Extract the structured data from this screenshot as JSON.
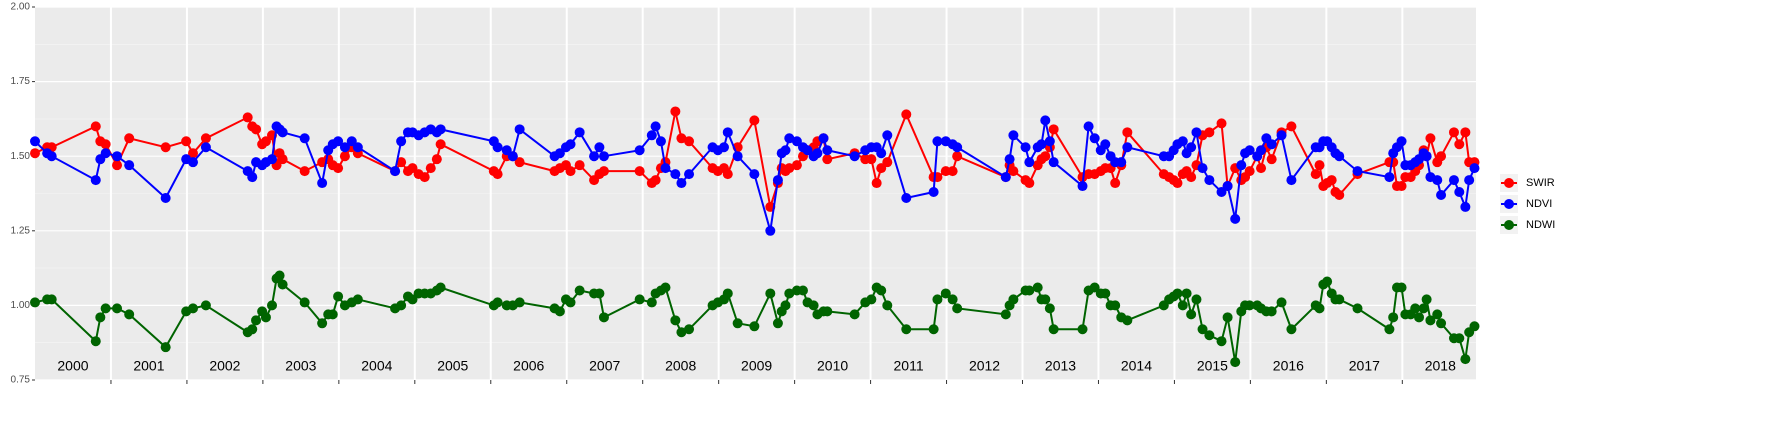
{
  "chart_data": {
    "type": "line",
    "x": [
      2000.0,
      2000.16,
      2000.22,
      2000.8,
      2000.86,
      2000.93,
      2001.08,
      2001.24,
      2001.72,
      2001.99,
      2002.08,
      2002.25,
      2002.8,
      2002.86,
      2002.91,
      2002.99,
      2003.04,
      2003.12,
      2003.18,
      2003.22,
      2003.26,
      2003.55,
      2003.78,
      2003.86,
      2003.92,
      2003.99,
      2004.08,
      2004.17,
      2004.25,
      2004.74,
      2004.82,
      2004.91,
      2004.97,
      2005.05,
      2005.13,
      2005.21,
      2005.29,
      2005.34,
      2006.04,
      2006.09,
      2006.21,
      2006.29,
      2006.38,
      2006.84,
      2006.91,
      2006.99,
      2007.05,
      2007.17,
      2007.36,
      2007.43,
      2007.49,
      2007.96,
      2008.12,
      2008.17,
      2008.24,
      2008.3,
      2008.43,
      2008.51,
      2008.61,
      2008.92,
      2008.99,
      2009.07,
      2009.12,
      2009.25,
      2009.47,
      2009.68,
      2009.78,
      2009.83,
      2009.88,
      2009.93,
      2010.03,
      2010.11,
      2010.17,
      2010.25,
      2010.3,
      2010.38,
      2010.43,
      2010.79,
      2010.93,
      2011.01,
      2011.08,
      2011.14,
      2011.22,
      2011.47,
      2011.83,
      2011.88,
      2011.99,
      2012.08,
      2012.14,
      2012.78,
      2012.83,
      2012.88,
      2013.04,
      2013.09,
      2013.2,
      2013.25,
      2013.3,
      2013.36,
      2013.41,
      2013.79,
      2013.87,
      2013.95,
      2014.03,
      2014.09,
      2014.16,
      2014.22,
      2014.3,
      2014.38,
      2014.86,
      2014.93,
      2014.99,
      2015.04,
      2015.11,
      2015.16,
      2015.22,
      2015.29,
      2015.37,
      2015.46,
      2015.62,
      2015.7,
      2015.8,
      2015.88,
      2015.93,
      2015.99,
      2016.09,
      2016.14,
      2016.21,
      2016.28,
      2016.41,
      2016.54,
      2016.86,
      2016.91,
      2016.96,
      2017.01,
      2017.07,
      2017.12,
      2017.17,
      2017.41,
      2017.83,
      2017.88,
      2017.93,
      2017.99,
      2018.04,
      2018.11,
      2018.17,
      2018.22,
      2018.28,
      2018.32,
      2018.37,
      2018.46,
      2018.51,
      2018.68,
      2018.75,
      2018.83,
      2018.88,
      2018.95
    ],
    "series": [
      {
        "name": "SWIR",
        "color": "#ff0000",
        "values": [
          1.51,
          1.53,
          1.53,
          1.6,
          1.55,
          1.54,
          1.47,
          1.56,
          1.53,
          1.55,
          1.51,
          1.56,
          1.63,
          1.6,
          1.59,
          1.54,
          1.55,
          1.57,
          1.47,
          1.51,
          1.49,
          1.45,
          1.48,
          1.49,
          1.47,
          1.46,
          1.5,
          1.53,
          1.51,
          1.45,
          1.48,
          1.45,
          1.46,
          1.44,
          1.43,
          1.46,
          1.49,
          1.54,
          1.45,
          1.44,
          1.5,
          1.5,
          1.48,
          1.45,
          1.46,
          1.47,
          1.45,
          1.47,
          1.42,
          1.44,
          1.45,
          1.45,
          1.41,
          1.42,
          1.46,
          1.48,
          1.65,
          1.56,
          1.55,
          1.46,
          1.45,
          1.46,
          1.44,
          1.53,
          1.62,
          1.33,
          1.41,
          1.46,
          1.45,
          1.46,
          1.47,
          1.5,
          1.52,
          1.53,
          1.55,
          1.56,
          1.49,
          1.51,
          1.49,
          1.49,
          1.41,
          1.46,
          1.48,
          1.64,
          1.43,
          1.43,
          1.45,
          1.45,
          1.5,
          1.43,
          1.47,
          1.45,
          1.42,
          1.41,
          1.47,
          1.49,
          1.5,
          1.53,
          1.59,
          1.43,
          1.44,
          1.44,
          1.45,
          1.46,
          1.46,
          1.41,
          1.47,
          1.58,
          1.44,
          1.43,
          1.42,
          1.41,
          1.44,
          1.45,
          1.43,
          1.47,
          1.57,
          1.58,
          1.61,
          1.4,
          1.46,
          1.42,
          1.43,
          1.45,
          1.5,
          1.46,
          1.53,
          1.49,
          1.58,
          1.6,
          1.44,
          1.47,
          1.4,
          1.41,
          1.42,
          1.38,
          1.37,
          1.44,
          1.48,
          1.48,
          1.4,
          1.4,
          1.43,
          1.43,
          1.45,
          1.47,
          1.52,
          1.5,
          1.56,
          1.48,
          1.5,
          1.58,
          1.54,
          1.58,
          1.48,
          1.48
        ]
      },
      {
        "name": "NDVI",
        "color": "#0000ff",
        "values": [
          1.55,
          1.51,
          1.5,
          1.42,
          1.49,
          1.51,
          1.5,
          1.47,
          1.36,
          1.49,
          1.48,
          1.53,
          1.45,
          1.43,
          1.48,
          1.47,
          1.48,
          1.49,
          1.6,
          1.59,
          1.58,
          1.56,
          1.41,
          1.52,
          1.54,
          1.55,
          1.53,
          1.55,
          1.53,
          1.45,
          1.55,
          1.58,
          1.58,
          1.57,
          1.58,
          1.59,
          1.58,
          1.59,
          1.55,
          1.53,
          1.52,
          1.5,
          1.59,
          1.5,
          1.51,
          1.53,
          1.54,
          1.58,
          1.5,
          1.53,
          1.5,
          1.52,
          1.57,
          1.6,
          1.55,
          1.46,
          1.44,
          1.41,
          1.44,
          1.53,
          1.52,
          1.53,
          1.58,
          1.5,
          1.44,
          1.25,
          1.42,
          1.51,
          1.52,
          1.56,
          1.55,
          1.53,
          1.52,
          1.5,
          1.51,
          1.56,
          1.52,
          1.5,
          1.52,
          1.53,
          1.53,
          1.51,
          1.57,
          1.36,
          1.38,
          1.55,
          1.55,
          1.54,
          1.53,
          1.43,
          1.49,
          1.57,
          1.53,
          1.48,
          1.53,
          1.54,
          1.62,
          1.55,
          1.48,
          1.4,
          1.6,
          1.56,
          1.52,
          1.54,
          1.5,
          1.48,
          1.48,
          1.53,
          1.5,
          1.5,
          1.52,
          1.54,
          1.55,
          1.51,
          1.53,
          1.58,
          1.46,
          1.42,
          1.38,
          1.4,
          1.29,
          1.47,
          1.51,
          1.52,
          1.5,
          1.52,
          1.56,
          1.54,
          1.57,
          1.42,
          1.53,
          1.53,
          1.55,
          1.55,
          1.53,
          1.51,
          1.5,
          1.45,
          1.43,
          1.51,
          1.53,
          1.55,
          1.47,
          1.47,
          1.48,
          1.49,
          1.51,
          1.5,
          1.43,
          1.42,
          1.37,
          1.42,
          1.38,
          1.33,
          1.42,
          1.46
        ]
      },
      {
        "name": "NDWI",
        "color": "#006400",
        "values": [
          1.01,
          1.02,
          1.02,
          0.88,
          0.96,
          0.99,
          0.99,
          0.97,
          0.86,
          0.98,
          0.99,
          1.0,
          0.91,
          0.92,
          0.95,
          0.98,
          0.96,
          1.0,
          1.09,
          1.1,
          1.07,
          1.01,
          0.94,
          0.97,
          0.97,
          1.03,
          1.0,
          1.01,
          1.02,
          0.99,
          1.0,
          1.03,
          1.02,
          1.04,
          1.04,
          1.04,
          1.05,
          1.06,
          1.0,
          1.01,
          1.0,
          1.0,
          1.01,
          0.99,
          0.98,
          1.02,
          1.01,
          1.05,
          1.04,
          1.04,
          0.96,
          1.02,
          1.01,
          1.04,
          1.05,
          1.06,
          0.95,
          0.91,
          0.92,
          1.0,
          1.01,
          1.02,
          1.04,
          0.94,
          0.93,
          1.04,
          0.94,
          0.98,
          1.0,
          1.04,
          1.05,
          1.05,
          1.01,
          1.0,
          0.97,
          0.98,
          0.98,
          0.97,
          1.01,
          1.02,
          1.06,
          1.05,
          1.0,
          0.92,
          0.92,
          1.02,
          1.04,
          1.02,
          0.99,
          0.97,
          1.0,
          1.02,
          1.05,
          1.05,
          1.06,
          1.02,
          1.02,
          0.99,
          0.92,
          0.92,
          1.05,
          1.06,
          1.04,
          1.04,
          1.0,
          1.0,
          0.96,
          0.95,
          1.0,
          1.02,
          1.03,
          1.04,
          1.0,
          1.04,
          0.97,
          1.02,
          0.92,
          0.9,
          0.88,
          0.96,
          0.81,
          0.98,
          1.0,
          1.0,
          1.0,
          0.99,
          0.98,
          0.98,
          1.01,
          0.92,
          1.0,
          0.99,
          1.07,
          1.08,
          1.04,
          1.02,
          1.02,
          0.99,
          0.92,
          0.96,
          1.06,
          1.06,
          0.97,
          0.97,
          0.99,
          0.96,
          0.99,
          1.02,
          0.95,
          0.97,
          0.94,
          0.89,
          0.89,
          0.82,
          0.91,
          0.93
        ]
      }
    ],
    "xlim": [
      2000,
      2018.97
    ],
    "ylim": [
      0.75,
      2.0
    ],
    "yticks": [
      0.75,
      {
        "value": 1.0,
        "label": "1.00"
      },
      1.25,
      {
        "value": 1.5,
        "label": "1.50"
      },
      1.75,
      {
        "value": 2.0,
        "label": "2.00"
      }
    ],
    "xticks": [
      {
        "value": 2000.5,
        "label": "2000"
      },
      {
        "value": 2001.5,
        "label": "2001"
      },
      {
        "value": 2002.5,
        "label": "2002"
      },
      {
        "value": 2003.5,
        "label": "2003"
      },
      {
        "value": 2004.5,
        "label": "2004"
      },
      {
        "value": 2005.5,
        "label": "2005"
      },
      {
        "value": 2006.5,
        "label": "2006"
      },
      {
        "value": 2007.5,
        "label": "2007"
      },
      {
        "value": 2008.5,
        "label": "2008"
      },
      {
        "value": 2009.5,
        "label": "2009"
      },
      {
        "value": 2010.5,
        "label": "2010"
      },
      {
        "value": 2011.5,
        "label": "2011"
      },
      {
        "value": 2012.5,
        "label": "2012"
      },
      {
        "value": 2013.5,
        "label": "2013"
      },
      {
        "value": 2014.5,
        "label": "2014"
      },
      {
        "value": 2015.5,
        "label": "2015"
      },
      {
        "value": 2016.5,
        "label": "2016"
      },
      {
        "value": 2017.5,
        "label": "2017"
      },
      {
        "value": 2018.5,
        "label": "2018"
      }
    ],
    "x_year_breaks": [
      2001,
      2002,
      2003,
      2004,
      2005,
      2006,
      2007,
      2008,
      2009,
      2010,
      2011,
      2012,
      2013,
      2014,
      2015,
      2016,
      2017,
      2018
    ],
    "grid": true,
    "legend_position": "right"
  }
}
